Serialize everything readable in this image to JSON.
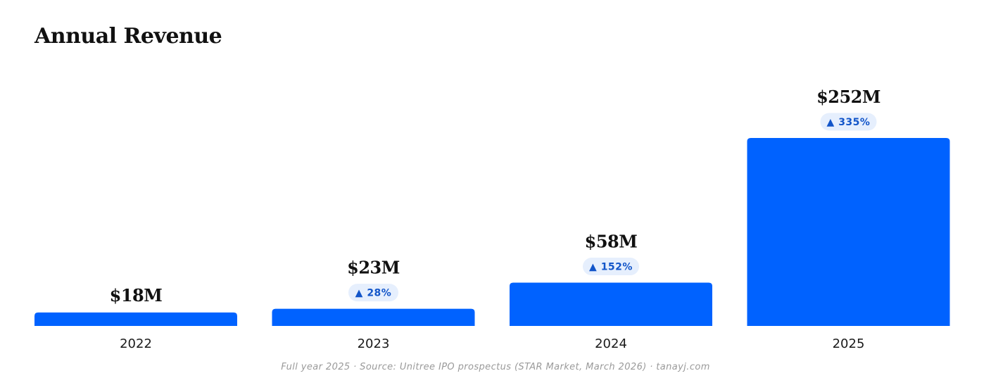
{
  "title": "Annual Revenue",
  "footer": "Full year 2025  ·  Source: Unitree IPO prospectus (STAR Market, March 2026)  ·  tanayj.com",
  "colors": {
    "bar": "#0062FF",
    "badge_bg": "#E6EFFD",
    "badge_text": "#1255C9"
  },
  "chart_data": {
    "type": "bar",
    "title": "Annual Revenue",
    "categories": [
      "2022",
      "2023",
      "2024",
      "2025"
    ],
    "values": [
      18,
      23,
      58,
      252
    ],
    "value_labels": [
      "$18M",
      "$23M",
      "$58M",
      "$252M"
    ],
    "growth_labels": [
      "",
      "▲ 28%",
      "▲ 152%",
      "▲ 335%"
    ],
    "xlabel": "",
    "ylabel": "",
    "unit": "$M",
    "grid": false,
    "legend": "none"
  }
}
